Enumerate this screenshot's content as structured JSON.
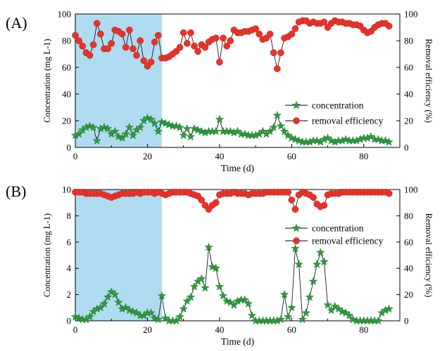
{
  "colors": {
    "shade": "#a6d8f0",
    "concentration": "#2e9a3e",
    "removal": "#e8332a",
    "axis": "#000000"
  },
  "chart_data": [
    {
      "panel": "(A)",
      "type": "line",
      "xlabel": "Time (d)",
      "ylabel": "Concentration (mg L-1)",
      "y2label": "Removal efficiency (%)",
      "xlim": [
        0,
        90
      ],
      "xticks": [
        "0",
        "20",
        "40",
        "60",
        "80"
      ],
      "ylim": [
        0,
        100
      ],
      "yticks": [
        "0",
        "20",
        "40",
        "60",
        "80",
        "100"
      ],
      "y2lim": [
        0,
        100
      ],
      "y2ticks": [
        "0",
        "20",
        "40",
        "60",
        "80",
        "100"
      ],
      "shaded_x": [
        0,
        24
      ],
      "legend_position": "center-right",
      "series": [
        {
          "name": "removal efficiency",
          "axis": "right",
          "marker": "circle",
          "x": [
            0,
            1,
            2,
            3,
            4,
            5,
            6,
            7,
            8,
            9,
            10,
            11,
            12,
            13,
            14,
            15,
            16,
            17,
            18,
            19,
            20,
            21,
            22,
            23,
            24,
            25,
            26,
            27,
            28,
            29,
            30,
            31,
            32,
            33,
            34,
            35,
            36,
            37,
            38,
            39,
            40,
            41,
            42,
            43,
            44,
            45,
            46,
            47,
            48,
            49,
            50,
            51,
            52,
            53,
            54,
            55,
            56,
            57,
            58,
            59,
            60,
            61,
            62,
            63,
            64,
            65,
            66,
            67,
            68,
            69,
            70,
            71,
            72,
            73,
            74,
            75,
            76,
            77,
            78,
            79,
            80,
            81,
            82,
            83,
            84,
            85,
            86,
            87
          ],
          "values": [
            84,
            80,
            76,
            71,
            69,
            77,
            93,
            85,
            74,
            74,
            78,
            88,
            87,
            85,
            75,
            88,
            74,
            69,
            80,
            65,
            61,
            64,
            79,
            84,
            67,
            67,
            68,
            70,
            72,
            75,
            86,
            78,
            86,
            76,
            72,
            77,
            75,
            79,
            81,
            82,
            64,
            82,
            76,
            80,
            88,
            86,
            86,
            87,
            87,
            88,
            89,
            85,
            81,
            82,
            85,
            71,
            59,
            71,
            82,
            83,
            85,
            89,
            94,
            95,
            95,
            93,
            94,
            93,
            93,
            94,
            90,
            93,
            95,
            94,
            94,
            93,
            93,
            92,
            92,
            91,
            88,
            86,
            87,
            90,
            92,
            93,
            93,
            91
          ]
        },
        {
          "name": "concentration",
          "axis": "left",
          "marker": "star",
          "x": [
            0,
            1,
            2,
            3,
            4,
            5,
            6,
            7,
            8,
            9,
            10,
            11,
            12,
            13,
            14,
            15,
            16,
            17,
            18,
            19,
            20,
            21,
            22,
            23,
            24,
            25,
            26,
            27,
            28,
            29,
            30,
            31,
            32,
            33,
            34,
            35,
            36,
            37,
            38,
            39,
            40,
            41,
            42,
            43,
            44,
            45,
            46,
            47,
            48,
            49,
            50,
            51,
            52,
            53,
            54,
            55,
            56,
            57,
            58,
            59,
            60,
            61,
            62,
            63,
            64,
            65,
            66,
            67,
            68,
            69,
            70,
            71,
            72,
            73,
            74,
            75,
            76,
            77,
            78,
            79,
            80,
            81,
            82,
            83,
            84,
            85,
            86,
            87
          ],
          "values": [
            9,
            10,
            13,
            15,
            16,
            15,
            5,
            14,
            15,
            14,
            10,
            12,
            8,
            7,
            10,
            15,
            9,
            13,
            15,
            20,
            22,
            21,
            18,
            12,
            19,
            18,
            17,
            16,
            16,
            15,
            9,
            14,
            8,
            14,
            13,
            12,
            11,
            12,
            12,
            12,
            21,
            12,
            12,
            12,
            11,
            12,
            10,
            10,
            9,
            9,
            9,
            10,
            12,
            10,
            12,
            15,
            24,
            16,
            12,
            9,
            7,
            6,
            5,
            4,
            4,
            4,
            5,
            5,
            4,
            6,
            7,
            5,
            4,
            5,
            5,
            6,
            5,
            5,
            5,
            6,
            7,
            7,
            8,
            6,
            6,
            5,
            5,
            4
          ]
        }
      ]
    },
    {
      "panel": "(B)",
      "type": "line",
      "xlabel": "Time (d)",
      "ylabel": "Concentration (mg L-1)",
      "y2label": "Removal efficiency (%)",
      "xlim": [
        0,
        90
      ],
      "xticks": [
        "0",
        "20",
        "40",
        "60",
        "80"
      ],
      "ylim": [
        0,
        10
      ],
      "yticks": [
        "0",
        "2",
        "4",
        "6",
        "8",
        "10"
      ],
      "y2lim": [
        0,
        100
      ],
      "y2ticks": [
        "0",
        "20",
        "40",
        "60",
        "80",
        "100"
      ],
      "shaded_x": [
        0,
        24
      ],
      "legend_position": "center-right",
      "series": [
        {
          "name": "removal efficiency",
          "axis": "right",
          "marker": "circle",
          "x": [
            0,
            1,
            2,
            3,
            4,
            5,
            6,
            7,
            8,
            9,
            10,
            11,
            12,
            13,
            14,
            15,
            16,
            17,
            18,
            19,
            20,
            21,
            22,
            23,
            24,
            25,
            26,
            27,
            28,
            29,
            30,
            31,
            32,
            33,
            34,
            35,
            36,
            37,
            38,
            39,
            40,
            41,
            42,
            43,
            44,
            45,
            46,
            47,
            48,
            49,
            50,
            51,
            52,
            53,
            54,
            55,
            56,
            57,
            58,
            59,
            60,
            61,
            62,
            63,
            64,
            65,
            66,
            67,
            68,
            69,
            70,
            71,
            72,
            73,
            74,
            75,
            76,
            77,
            78,
            79,
            80,
            81,
            82,
            83,
            84,
            85,
            86,
            87
          ],
          "values": [
            98,
            98,
            98,
            97,
            97,
            97,
            97,
            97,
            96,
            95,
            94,
            95,
            96,
            97,
            97,
            97,
            97,
            98,
            97,
            98,
            98,
            98,
            97,
            98,
            97,
            96,
            97,
            98,
            98,
            98,
            98,
            98,
            97,
            96,
            95,
            92,
            88,
            85,
            88,
            90,
            96,
            97,
            97,
            97,
            98,
            97,
            97,
            97,
            96,
            97,
            97,
            97,
            97,
            98,
            98,
            98,
            98,
            98,
            98,
            98,
            92,
            85,
            96,
            98,
            97,
            96,
            94,
            89,
            87,
            88,
            96,
            97,
            97,
            97,
            98,
            98,
            98,
            98,
            98,
            98,
            98,
            98,
            98,
            98,
            98,
            98,
            98,
            97
          ]
        },
        {
          "name": "concentration",
          "axis": "left",
          "marker": "star",
          "x": [
            0,
            1,
            2,
            3,
            4,
            5,
            6,
            7,
            8,
            9,
            10,
            11,
            12,
            13,
            14,
            15,
            16,
            17,
            18,
            19,
            20,
            21,
            22,
            23,
            24,
            25,
            26,
            27,
            28,
            29,
            30,
            31,
            32,
            33,
            34,
            35,
            36,
            37,
            38,
            39,
            40,
            41,
            42,
            43,
            44,
            45,
            46,
            47,
            48,
            49,
            50,
            51,
            52,
            53,
            54,
            55,
            56,
            57,
            58,
            59,
            60,
            61,
            62,
            63,
            64,
            65,
            66,
            67,
            68,
            69,
            70,
            71,
            72,
            73,
            74,
            75,
            76,
            77,
            78,
            79,
            80,
            81,
            82,
            83,
            84,
            85,
            86,
            87
          ],
          "values": [
            0.3,
            0.2,
            0.1,
            0.1,
            0.3,
            0.7,
            0.9,
            1.0,
            1.3,
            1.8,
            2.2,
            2.0,
            1.4,
            0.9,
            1.0,
            0.8,
            0.7,
            0.6,
            0.4,
            0.4,
            0.6,
            0.6,
            0.2,
            0.1,
            1.9,
            0.2,
            0.0,
            0.0,
            0.0,
            0.3,
            0.9,
            1.5,
            1.8,
            2.6,
            3.0,
            3.2,
            2.5,
            5.6,
            4.1,
            4.0,
            2.6,
            1.9,
            1.5,
            1.4,
            1.2,
            1.5,
            1.6,
            1.6,
            1.3,
            0.4,
            0.0,
            0.0,
            0.0,
            0.0,
            0.0,
            0.0,
            0.0,
            0.1,
            2.0,
            0.3,
            1.0,
            5.5,
            4.3,
            0.1,
            0.6,
            1.8,
            3.0,
            4.3,
            5.2,
            4.5,
            1.2,
            0.8,
            1.1,
            0.9,
            0.7,
            0.6,
            0.4,
            0.1,
            0.0,
            0.0,
            0.0,
            0.0,
            0.0,
            0.0,
            0.0,
            0.6,
            0.8,
            0.9
          ]
        }
      ]
    }
  ]
}
